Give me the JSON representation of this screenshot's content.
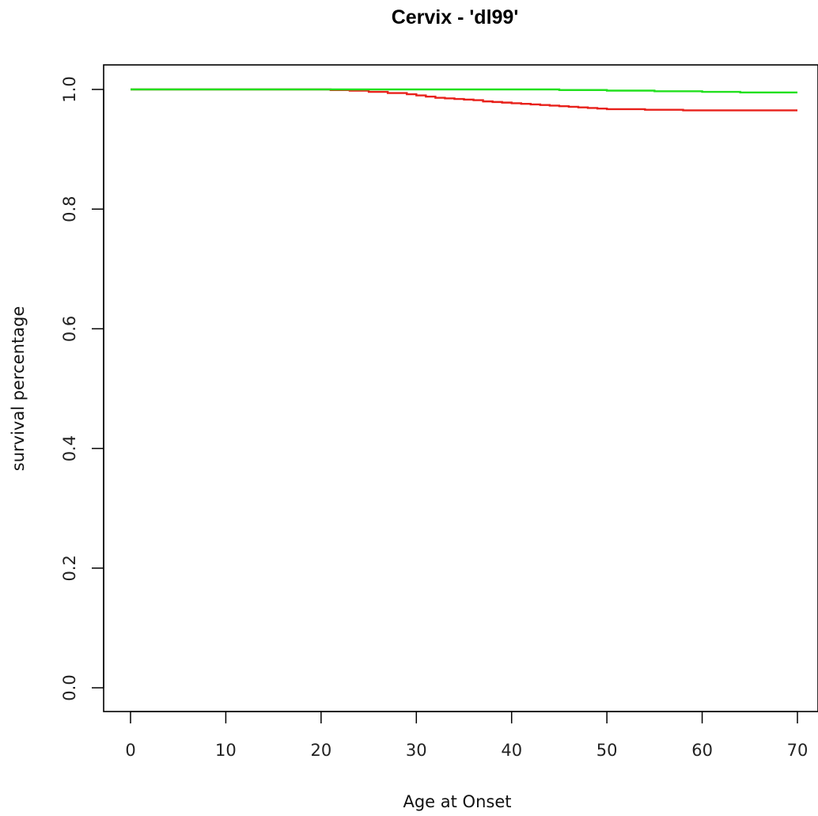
{
  "chart_data": {
    "type": "line",
    "title": "Cervix - 'dl99'",
    "xlabel": "Age at Onset",
    "ylabel": "survival percentage",
    "xlim": [
      0,
      70
    ],
    "ylim": [
      0.0,
      1.0
    ],
    "x_ticks": [
      "0",
      "10",
      "20",
      "30",
      "40",
      "50",
      "60",
      "70"
    ],
    "y_ticks": [
      "0.0",
      "0.2",
      "0.4",
      "0.6",
      "0.8",
      "1.0"
    ],
    "grid": false,
    "step": true,
    "series": [
      {
        "color": "#e8201a",
        "x": [
          0,
          19,
          21,
          23,
          25,
          27,
          29,
          30,
          31,
          32,
          33,
          34,
          35,
          36,
          37,
          38,
          39,
          40,
          41,
          42,
          43,
          44,
          45,
          46,
          47,
          48,
          49,
          50,
          52,
          54,
          56,
          58,
          60,
          62,
          64,
          66,
          68,
          70
        ],
        "y": [
          1.0,
          1.0,
          0.999,
          0.998,
          0.996,
          0.994,
          0.992,
          0.99,
          0.988,
          0.986,
          0.985,
          0.984,
          0.983,
          0.982,
          0.98,
          0.979,
          0.978,
          0.977,
          0.976,
          0.975,
          0.974,
          0.973,
          0.972,
          0.971,
          0.97,
          0.969,
          0.968,
          0.967,
          0.967,
          0.966,
          0.966,
          0.965,
          0.965,
          0.965,
          0.965,
          0.965,
          0.965,
          0.965
        ]
      },
      {
        "color": "#22e01f",
        "x": [
          0,
          19,
          30,
          45,
          50,
          55,
          60,
          64,
          66,
          70
        ],
        "y": [
          1.0,
          1.0,
          1.0,
          0.999,
          0.998,
          0.997,
          0.996,
          0.995,
          0.995,
          0.995
        ]
      }
    ]
  }
}
